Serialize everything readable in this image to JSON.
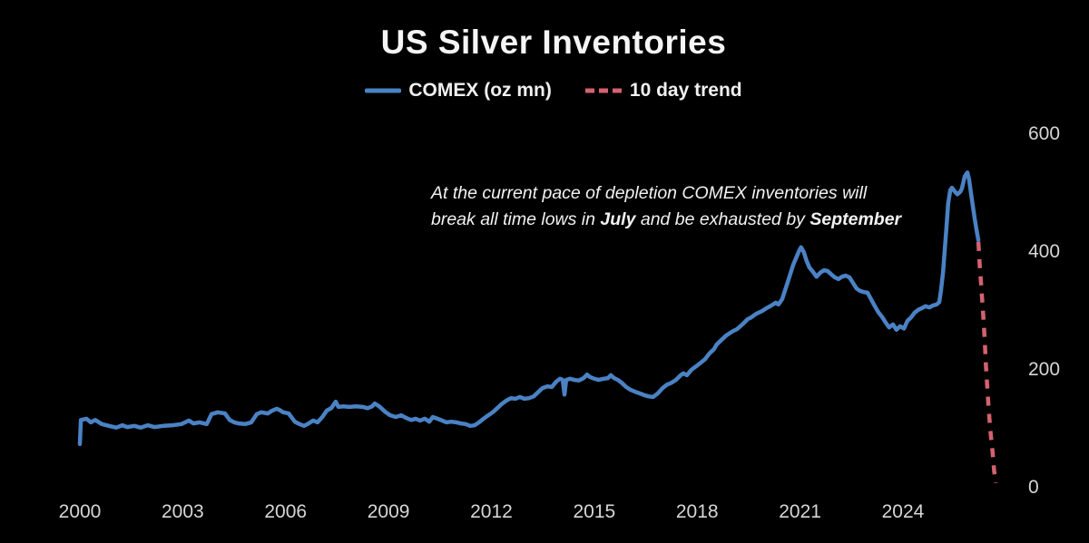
{
  "title": "US Silver Inventories",
  "legend": {
    "comex": {
      "label": "COMEX (oz mn)",
      "color": "#4a82c4"
    },
    "trend": {
      "label": "10 day trend",
      "color": "#d4626e"
    }
  },
  "annotation": {
    "line1": "At the current pace of depletion COMEX inventories will",
    "line2_pre": "break all time lows in ",
    "line2_bold1": "July",
    "line2_mid": " and be exhausted by ",
    "line2_bold2": "September"
  },
  "chart_data": {
    "type": "line",
    "title": "US Silver Inventories",
    "xlabel": "",
    "ylabel": "",
    "grid": false,
    "legend_position": "top-center",
    "xlim": [
      1999.6,
      2027.3
    ],
    "ylim": [
      0,
      620
    ],
    "x_ticks": [
      2000,
      2003,
      2006,
      2009,
      2012,
      2015,
      2018,
      2021,
      2024
    ],
    "y_ticks": [
      0,
      200,
      400,
      600
    ],
    "series": [
      {
        "name": "COMEX (oz mn)",
        "color": "#4a82c4",
        "style": "solid",
        "points": [
          [
            2000.0,
            74
          ],
          [
            2000.03,
            115
          ],
          [
            2000.19,
            117
          ],
          [
            2000.32,
            111
          ],
          [
            2000.45,
            115
          ],
          [
            2000.64,
            108
          ],
          [
            2000.85,
            105
          ],
          [
            2001.06,
            102
          ],
          [
            2001.24,
            106
          ],
          [
            2001.38,
            103
          ],
          [
            2001.59,
            105
          ],
          [
            2001.77,
            102
          ],
          [
            2001.98,
            106
          ],
          [
            2002.17,
            103
          ],
          [
            2002.43,
            105
          ],
          [
            2002.7,
            106
          ],
          [
            2002.96,
            108
          ],
          [
            2003.18,
            114
          ],
          [
            2003.31,
            109
          ],
          [
            2003.49,
            111
          ],
          [
            2003.7,
            108
          ],
          [
            2003.84,
            125
          ],
          [
            2004.02,
            128
          ],
          [
            2004.23,
            126
          ],
          [
            2004.37,
            115
          ],
          [
            2004.5,
            111
          ],
          [
            2004.63,
            109
          ],
          [
            2004.82,
            108
          ],
          [
            2005.0,
            111
          ],
          [
            2005.16,
            125
          ],
          [
            2005.29,
            128
          ],
          [
            2005.48,
            126
          ],
          [
            2005.61,
            131
          ],
          [
            2005.74,
            134
          ],
          [
            2005.82,
            132
          ],
          [
            2005.93,
            128
          ],
          [
            2006.09,
            126
          ],
          [
            2006.27,
            112
          ],
          [
            2006.4,
            108
          ],
          [
            2006.54,
            105
          ],
          [
            2006.67,
            109
          ],
          [
            2006.8,
            114
          ],
          [
            2006.93,
            111
          ],
          [
            2007.07,
            120
          ],
          [
            2007.2,
            131
          ],
          [
            2007.33,
            135
          ],
          [
            2007.46,
            146
          ],
          [
            2007.54,
            137
          ],
          [
            2007.67,
            138
          ],
          [
            2007.86,
            137
          ],
          [
            2008.04,
            138
          ],
          [
            2008.26,
            137
          ],
          [
            2008.39,
            135
          ],
          [
            2008.52,
            138
          ],
          [
            2008.6,
            143
          ],
          [
            2008.73,
            138
          ],
          [
            2008.92,
            128
          ],
          [
            2009.05,
            123
          ],
          [
            2009.21,
            120
          ],
          [
            2009.37,
            123
          ],
          [
            2009.53,
            118
          ],
          [
            2009.66,
            115
          ],
          [
            2009.79,
            117
          ],
          [
            2009.92,
            114
          ],
          [
            2010.06,
            117
          ],
          [
            2010.19,
            112
          ],
          [
            2010.29,
            120
          ],
          [
            2010.43,
            117
          ],
          [
            2010.56,
            114
          ],
          [
            2010.69,
            111
          ],
          [
            2010.82,
            112
          ],
          [
            2010.98,
            111
          ],
          [
            2011.11,
            109
          ],
          [
            2011.25,
            108
          ],
          [
            2011.38,
            105
          ],
          [
            2011.51,
            106
          ],
          [
            2011.64,
            111
          ],
          [
            2011.77,
            117
          ],
          [
            2011.91,
            123
          ],
          [
            2012.04,
            128
          ],
          [
            2012.17,
            135
          ],
          [
            2012.3,
            142
          ],
          [
            2012.44,
            148
          ],
          [
            2012.57,
            152
          ],
          [
            2012.7,
            151
          ],
          [
            2012.83,
            154
          ],
          [
            2012.96,
            151
          ],
          [
            2013.1,
            152
          ],
          [
            2013.23,
            155
          ],
          [
            2013.36,
            162
          ],
          [
            2013.49,
            169
          ],
          [
            2013.63,
            172
          ],
          [
            2013.76,
            171
          ],
          [
            2013.89,
            180
          ],
          [
            2014.0,
            185
          ],
          [
            2014.08,
            183
          ],
          [
            2014.13,
            158
          ],
          [
            2014.18,
            183
          ],
          [
            2014.29,
            185
          ],
          [
            2014.42,
            183
          ],
          [
            2014.55,
            182
          ],
          [
            2014.69,
            186
          ],
          [
            2014.79,
            192
          ],
          [
            2014.87,
            188
          ],
          [
            2015.0,
            185
          ],
          [
            2015.13,
            183
          ],
          [
            2015.27,
            185
          ],
          [
            2015.4,
            186
          ],
          [
            2015.48,
            191
          ],
          [
            2015.58,
            186
          ],
          [
            2015.69,
            183
          ],
          [
            2015.8,
            178
          ],
          [
            2015.93,
            171
          ],
          [
            2016.06,
            166
          ],
          [
            2016.19,
            163
          ],
          [
            2016.33,
            160
          ],
          [
            2016.46,
            157
          ],
          [
            2016.59,
            155
          ],
          [
            2016.72,
            154
          ],
          [
            2016.85,
            160
          ],
          [
            2016.99,
            169
          ],
          [
            2017.12,
            175
          ],
          [
            2017.25,
            178
          ],
          [
            2017.38,
            183
          ],
          [
            2017.52,
            191
          ],
          [
            2017.6,
            194
          ],
          [
            2017.7,
            191
          ],
          [
            2017.83,
            200
          ],
          [
            2017.97,
            206
          ],
          [
            2018.1,
            212
          ],
          [
            2018.23,
            218
          ],
          [
            2018.36,
            228
          ],
          [
            2018.49,
            235
          ],
          [
            2018.57,
            243
          ],
          [
            2018.71,
            251
          ],
          [
            2018.84,
            258
          ],
          [
            2018.97,
            263
          ],
          [
            2019.05,
            266
          ],
          [
            2019.16,
            269
          ],
          [
            2019.26,
            274
          ],
          [
            2019.37,
            280
          ],
          [
            2019.47,
            286
          ],
          [
            2019.58,
            289
          ],
          [
            2019.69,
            294
          ],
          [
            2019.79,
            297
          ],
          [
            2019.9,
            300
          ],
          [
            2020.03,
            305
          ],
          [
            2020.16,
            309
          ],
          [
            2020.29,
            314
          ],
          [
            2020.37,
            311
          ],
          [
            2020.48,
            320
          ],
          [
            2020.58,
            338
          ],
          [
            2020.69,
            358
          ],
          [
            2020.8,
            378
          ],
          [
            2020.9,
            392
          ],
          [
            2020.98,
            403
          ],
          [
            2021.03,
            408
          ],
          [
            2021.11,
            400
          ],
          [
            2021.19,
            385
          ],
          [
            2021.27,
            374
          ],
          [
            2021.38,
            366
          ],
          [
            2021.48,
            358
          ],
          [
            2021.59,
            365
          ],
          [
            2021.7,
            369
          ],
          [
            2021.8,
            368
          ],
          [
            2021.91,
            362
          ],
          [
            2022.01,
            357
          ],
          [
            2022.12,
            354
          ],
          [
            2022.22,
            358
          ],
          [
            2022.33,
            360
          ],
          [
            2022.44,
            357
          ],
          [
            2022.54,
            348
          ],
          [
            2022.65,
            338
          ],
          [
            2022.75,
            334
          ],
          [
            2022.86,
            332
          ],
          [
            2022.97,
            331
          ],
          [
            2023.07,
            320
          ],
          [
            2023.18,
            308
          ],
          [
            2023.28,
            298
          ],
          [
            2023.39,
            290
          ],
          [
            2023.5,
            280
          ],
          [
            2023.6,
            272
          ],
          [
            2023.71,
            277
          ],
          [
            2023.81,
            268
          ],
          [
            2023.92,
            274
          ],
          [
            2024.03,
            270
          ],
          [
            2024.13,
            283
          ],
          [
            2024.24,
            289
          ],
          [
            2024.34,
            297
          ],
          [
            2024.45,
            302
          ],
          [
            2024.56,
            305
          ],
          [
            2024.66,
            308
          ],
          [
            2024.77,
            306
          ],
          [
            2024.87,
            309
          ],
          [
            2024.98,
            311
          ],
          [
            2025.06,
            315
          ],
          [
            2025.11,
            335
          ],
          [
            2025.17,
            366
          ],
          [
            2025.22,
            405
          ],
          [
            2025.27,
            443
          ],
          [
            2025.32,
            482
          ],
          [
            2025.38,
            505
          ],
          [
            2025.43,
            509
          ],
          [
            2025.51,
            503
          ],
          [
            2025.59,
            498
          ],
          [
            2025.67,
            502
          ],
          [
            2025.72,
            508
          ],
          [
            2025.8,
            528
          ],
          [
            2025.88,
            535
          ],
          [
            2025.93,
            523
          ],
          [
            2025.99,
            497
          ],
          [
            2026.04,
            477
          ],
          [
            2026.09,
            458
          ],
          [
            2026.14,
            440
          ],
          [
            2026.2,
            420
          ]
        ]
      },
      {
        "name": "10 day trend",
        "color": "#d4626e",
        "style": "dashed",
        "points": [
          [
            2026.2,
            417
          ],
          [
            2026.24,
            377
          ],
          [
            2026.28,
            346
          ],
          [
            2026.32,
            312
          ],
          [
            2026.36,
            278
          ],
          [
            2026.39,
            243
          ],
          [
            2026.42,
            208
          ],
          [
            2026.46,
            171
          ],
          [
            2026.5,
            135
          ],
          [
            2026.55,
            97
          ],
          [
            2026.61,
            63
          ],
          [
            2026.66,
            28
          ],
          [
            2026.71,
            8
          ]
        ]
      }
    ]
  }
}
